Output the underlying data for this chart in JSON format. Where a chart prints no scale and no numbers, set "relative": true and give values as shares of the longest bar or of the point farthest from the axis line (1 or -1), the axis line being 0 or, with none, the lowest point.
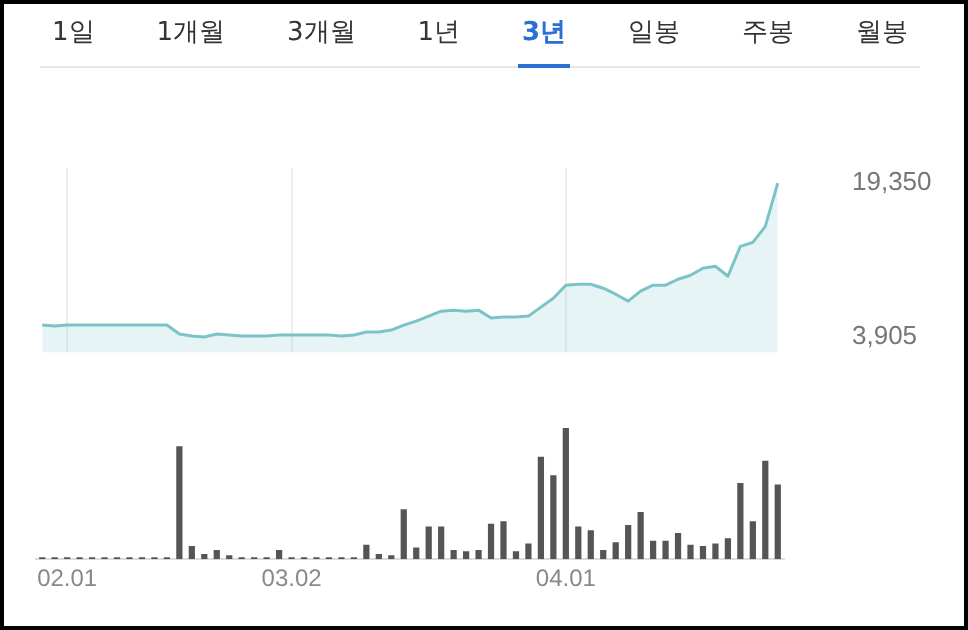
{
  "chart_data": [
    {
      "type": "other",
      "annotations": [
        "1일",
        "1개월",
        "3개월",
        "1년",
        "3년",
        "일봉",
        "주봉",
        "월봉"
      ]
    },
    {
      "type": "area",
      "categories": [
        null,
        null,
        "02.01",
        null,
        null,
        null,
        null,
        null,
        null,
        null,
        null,
        null,
        null,
        null,
        null,
        null,
        null,
        null,
        null,
        null,
        "03.02",
        null,
        null,
        null,
        null,
        null,
        null,
        null,
        null,
        null,
        null,
        null,
        null,
        null,
        null,
        null,
        null,
        null,
        null,
        null,
        null,
        null,
        "04.01",
        null,
        null,
        null,
        null,
        null,
        null,
        null,
        null,
        null,
        null,
        null,
        null,
        null,
        null,
        null,
        null,
        null
      ],
      "series": [
        {
          "color": "#7cc3c8",
          "values": [
            5100,
            5000,
            5100,
            5100,
            5100,
            5100,
            5100,
            5100,
            5100,
            5100,
            5100,
            4200,
            4000,
            3905,
            4200,
            4100,
            4000,
            4000,
            4000,
            4100,
            4100,
            4100,
            4100,
            4100,
            4000,
            4100,
            4400,
            4400,
            4600,
            5100,
            5500,
            6000,
            6500,
            6600,
            6500,
            6600,
            5800,
            5900,
            5900,
            6000,
            6900,
            7800,
            9100,
            9200,
            9200,
            8800,
            8200,
            7500,
            8500,
            9100,
            9100,
            9700,
            10100,
            10800,
            11000,
            10000,
            13000,
            13400,
            15000,
            19350
          ]
        }
      ],
      "ylim": [
        2360,
        20900
      ],
      "yticks": [
        {
          "value": 3905,
          "label": "3,905"
        },
        {
          "value": 19350,
          "label": "19,350"
        }
      ],
      "grid": "x",
      "tick_labels": "y"
    },
    {
      "type": "bar",
      "relative": true,
      "categories": [
        null,
        null,
        "02.01",
        null,
        null,
        null,
        null,
        null,
        null,
        null,
        null,
        null,
        null,
        null,
        null,
        null,
        null,
        null,
        null,
        null,
        "03.02",
        null,
        null,
        null,
        null,
        null,
        null,
        null,
        null,
        null,
        null,
        null,
        null,
        null,
        null,
        null,
        null,
        null,
        null,
        null,
        null,
        null,
        "04.01",
        null,
        null,
        null,
        null,
        null,
        null,
        null,
        null,
        null,
        null,
        null,
        null,
        null,
        null,
        null,
        null,
        null
      ],
      "color": "#555555",
      "values": [
        0.015,
        0.015,
        0.015,
        0.015,
        0.015,
        0.015,
        0.015,
        0.015,
        0.015,
        0.015,
        0.015,
        0.86,
        0.1,
        0.04,
        0.07,
        0.03,
        0.015,
        0.015,
        0.015,
        0.07,
        0.015,
        0.015,
        0.015,
        0.015,
        0.015,
        0.015,
        0.11,
        0.04,
        0.03,
        0.38,
        0.09,
        0.25,
        0.25,
        0.07,
        0.06,
        0.07,
        0.27,
        0.29,
        0.06,
        0.12,
        0.78,
        0.64,
        1,
        0.25,
        0.22,
        0.07,
        0.13,
        0.26,
        0.36,
        0.14,
        0.14,
        0.2,
        0.11,
        0.1,
        0.12,
        0.16,
        0.58,
        0.29,
        0.75,
        0.57
      ],
      "tick_labels": "x"
    }
  ]
}
